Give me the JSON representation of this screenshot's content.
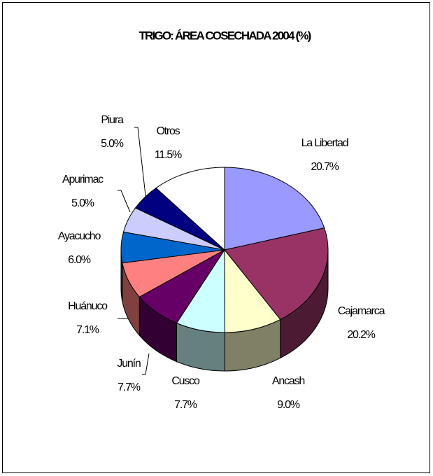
{
  "chart_data": {
    "type": "pie3d",
    "title": "TRIGO: ÁREA COSECHADA 2004 (%)",
    "categories": [
      "La Libertad",
      "Cajamarca",
      "Ancash",
      "Cusco",
      "Junín",
      "Huánuco",
      "Ayacucho",
      "Apurimac",
      "Piura",
      "Otros"
    ],
    "values": [
      20.7,
      20.2,
      9.0,
      7.7,
      7.7,
      7.1,
      6.0,
      5.0,
      5.0,
      11.5
    ],
    "value_labels": [
      "20.7%",
      "20.2%",
      "9.0%",
      "7.7%",
      "7.7%",
      "7.1%",
      "6.0%",
      "5.0%",
      "5.0%",
      "11.5%"
    ],
    "colors": [
      "#9999ff",
      "#993366",
      "#ffffcc",
      "#ccffff",
      "#660066",
      "#ff8080",
      "#0066cc",
      "#ccccff",
      "#000080",
      "#ffffff"
    ]
  }
}
